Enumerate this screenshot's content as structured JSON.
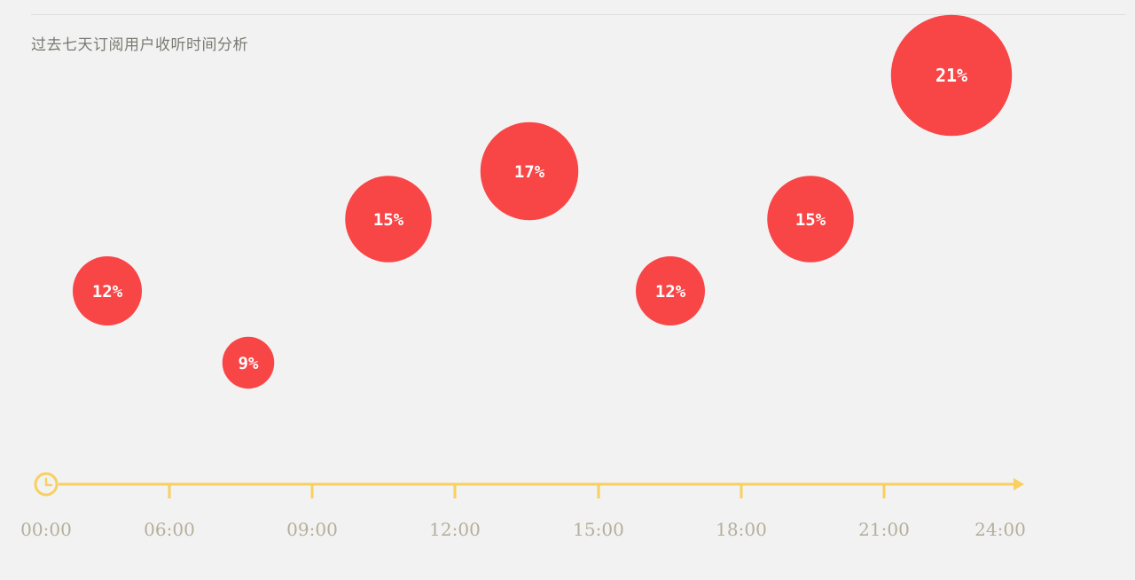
{
  "header": {
    "title": "过去七天订阅用户收听时间分析"
  },
  "colors": {
    "bubble": "#f84546",
    "axis": "#f7d060",
    "tick_text": "#b2b09c",
    "title_text": "#7a7a72"
  },
  "icons": {
    "axis_start": "clock-icon",
    "axis_end": "arrow-right-icon"
  },
  "chart_data": {
    "type": "scatter",
    "title": "过去七天订阅用户收听时间分析",
    "xlabel": "",
    "ylabel": "",
    "x_ticks": [
      "00:00",
      "06:00",
      "09:00",
      "12:00",
      "15:00",
      "18:00",
      "21:00",
      "24:00"
    ],
    "grid": false,
    "legend": "none",
    "points": [
      {
        "x": "06:00",
        "value": 12,
        "label": "12%"
      },
      {
        "x": "09:00",
        "value": 9,
        "label": "9%"
      },
      {
        "x": "12:00",
        "value": 15,
        "label": "15%"
      },
      {
        "x": "15:00",
        "value": 17,
        "label": "17%"
      },
      {
        "x": "18:00",
        "value": 12,
        "label": "12%"
      },
      {
        "x": "21:00",
        "value": 15,
        "label": "15%"
      },
      {
        "x": "24:00",
        "value": 21,
        "label": "21%"
      }
    ]
  }
}
